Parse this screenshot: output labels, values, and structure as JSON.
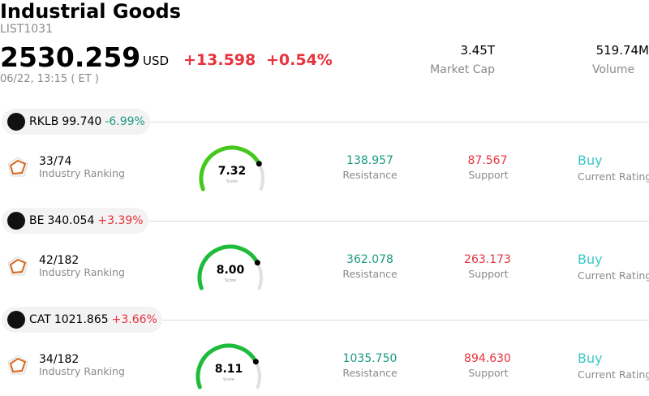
{
  "header": {
    "title": "Industrial Goods",
    "list_id": "LIST1031",
    "price": "2530.259",
    "currency": "USD",
    "change": "+13.598",
    "change_pct": "+0.54%",
    "timestamp": "06/22, 13:15 ( ET )",
    "market_cap": "3.45T",
    "market_cap_label": "Market Cap",
    "volume": "519.74M",
    "volume_label": "Volume"
  },
  "stocks": [
    {
      "ticker": "RKLB",
      "price": "99.740",
      "change_pct": "-6.99%",
      "ranking": "33/74",
      "ranking_label": "Industry Ranking",
      "score": "7.32",
      "score_label": "Score",
      "resistance": "138.957",
      "resistance_label": "Resistance",
      "support": "87.567",
      "support_label": "Support",
      "rating": "Buy",
      "rating_label": "Current Rating"
    },
    {
      "ticker": "BE",
      "price": "340.054",
      "change_pct": "+3.39%",
      "ranking": "42/182",
      "ranking_label": "Industry Ranking",
      "score": "8.00",
      "score_label": "Score",
      "resistance": "362.078",
      "resistance_label": "Resistance",
      "support": "263.173",
      "support_label": "Support",
      "rating": "Buy",
      "rating_label": "Current Rating"
    },
    {
      "ticker": "CAT",
      "price": "1021.865",
      "change_pct": "+3.66%",
      "ranking": "34/182",
      "ranking_label": "Industry Ranking",
      "score": "8.11",
      "score_label": "Score",
      "resistance": "1035.750",
      "resistance_label": "Resistance",
      "support": "894.630",
      "support_label": "Support",
      "rating": "Buy",
      "rating_label": "Current Rating"
    }
  ]
}
